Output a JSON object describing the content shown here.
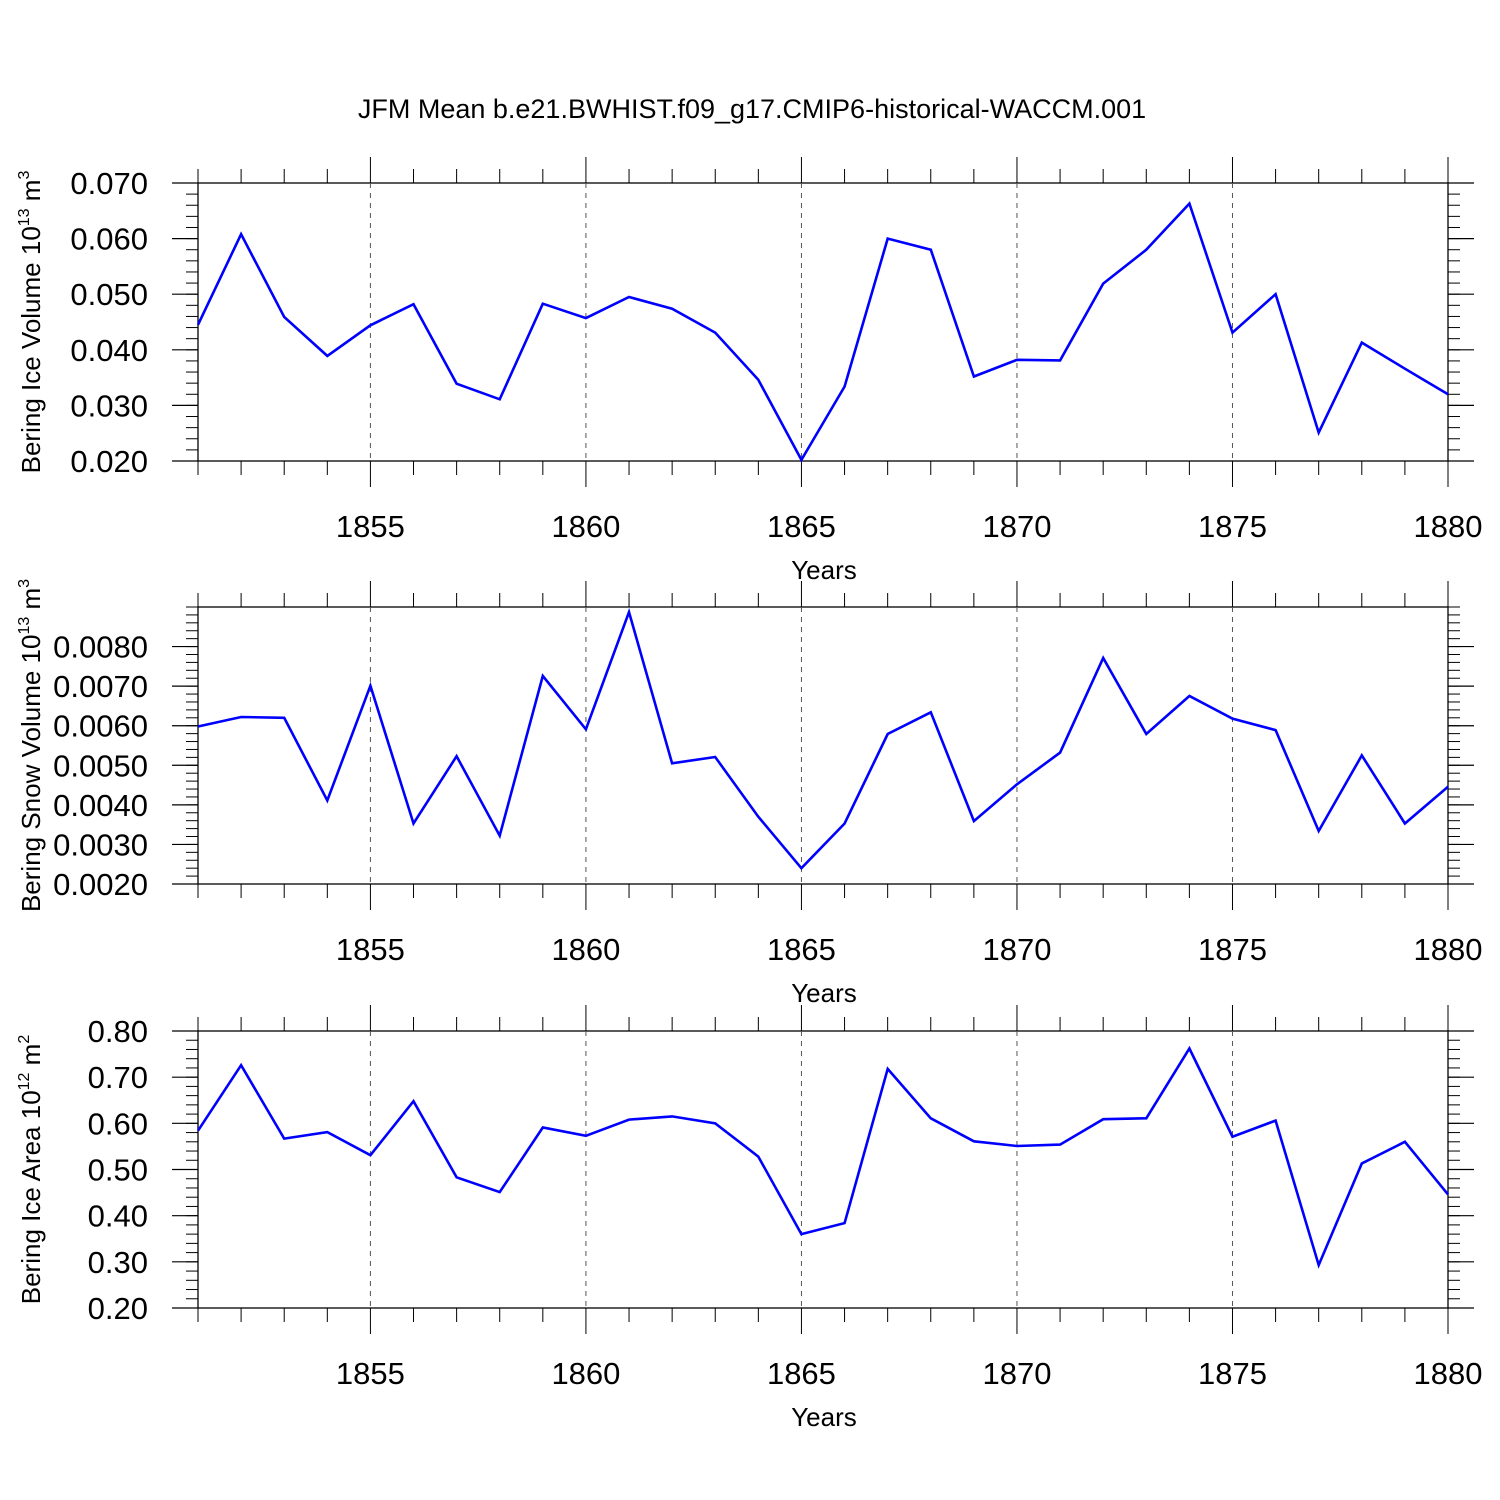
{
  "chart_data": {
    "title": "JFM Mean b.e21.BWHIST.f09_g17.CMIP6-historical-WACCM.001",
    "line_color": "#0000ff",
    "x_label": "Years",
    "x_range": [
      1851,
      1880
    ],
    "x_ticks": [
      1855,
      1860,
      1865,
      1870,
      1875,
      1880
    ],
    "x_tick_labels": [
      "1855",
      "1860",
      "1865",
      "1870",
      "1875",
      "1880"
    ],
    "x": [
      1851,
      1852,
      1853,
      1854,
      1855,
      1856,
      1857,
      1858,
      1859,
      1860,
      1861,
      1862,
      1863,
      1864,
      1865,
      1866,
      1867,
      1868,
      1869,
      1870,
      1871,
      1872,
      1873,
      1874,
      1875,
      1876,
      1877,
      1878,
      1879,
      1880
    ],
    "panels": [
      {
        "type": "line",
        "ylabel_main": "Bering Ice Volume 10",
        "ylabel_exp": "13",
        "ylabel_unit": " m",
        "ylabel_unit_exp": "3",
        "ylim": [
          0.02,
          0.07
        ],
        "y_ticks": [
          0.02,
          0.03,
          0.04,
          0.05,
          0.06,
          0.07
        ],
        "y_tick_labels": [
          "0.020",
          "0.030",
          "0.040",
          "0.050",
          "0.060",
          "0.070"
        ],
        "minor_step": 0.002,
        "values": [
          0.0445,
          0.0608,
          0.0459,
          0.0389,
          0.0444,
          0.0482,
          0.0339,
          0.0311,
          0.0483,
          0.0457,
          0.0495,
          0.0474,
          0.0431,
          0.0346,
          0.0202,
          0.0334,
          0.06,
          0.058,
          0.0352,
          0.0382,
          0.0381,
          0.0519,
          0.058,
          0.0663,
          0.0431,
          0.05,
          0.0251,
          0.0413,
          0.0366,
          0.032
        ]
      },
      {
        "type": "line",
        "ylabel_main": "Bering Snow Volume 10",
        "ylabel_exp": "13",
        "ylabel_unit": " m",
        "ylabel_unit_exp": "3",
        "ylim": [
          0.002,
          0.009
        ],
        "y_ticks": [
          0.002,
          0.003,
          0.004,
          0.005,
          0.006,
          0.007,
          0.008
        ],
        "y_tick_labels": [
          "0.0020",
          "0.0030",
          "0.0040",
          "0.0050",
          "0.0060",
          "0.0070",
          "0.0080"
        ],
        "minor_step": 0.0002,
        "values": [
          0.00598,
          0.00622,
          0.0062,
          0.00411,
          0.00701,
          0.00353,
          0.00523,
          0.00322,
          0.00726,
          0.00591,
          0.00887,
          0.00505,
          0.00521,
          0.0037,
          0.0024,
          0.00353,
          0.00579,
          0.00634,
          0.00359,
          0.00452,
          0.00532,
          0.00771,
          0.00579,
          0.00675,
          0.00618,
          0.00589,
          0.00334,
          0.00525,
          0.00353,
          0.00446
        ]
      },
      {
        "type": "line",
        "ylabel_main": "Bering Ice Area 10",
        "ylabel_exp": "12",
        "ylabel_unit": " m",
        "ylabel_unit_exp": "2",
        "ylim": [
          0.2,
          0.8
        ],
        "y_ticks": [
          0.2,
          0.3,
          0.4,
          0.5,
          0.6,
          0.7,
          0.8
        ],
        "y_tick_labels": [
          "0.20",
          "0.30",
          "0.40",
          "0.50",
          "0.60",
          "0.70",
          "0.80"
        ],
        "minor_step": 0.02,
        "values": [
          0.584,
          0.726,
          0.567,
          0.581,
          0.531,
          0.648,
          0.483,
          0.451,
          0.591,
          0.573,
          0.608,
          0.615,
          0.6,
          0.528,
          0.36,
          0.384,
          0.718,
          0.611,
          0.561,
          0.551,
          0.554,
          0.609,
          0.611,
          0.762,
          0.571,
          0.606,
          0.293,
          0.513,
          0.56,
          0.446
        ]
      }
    ]
  }
}
